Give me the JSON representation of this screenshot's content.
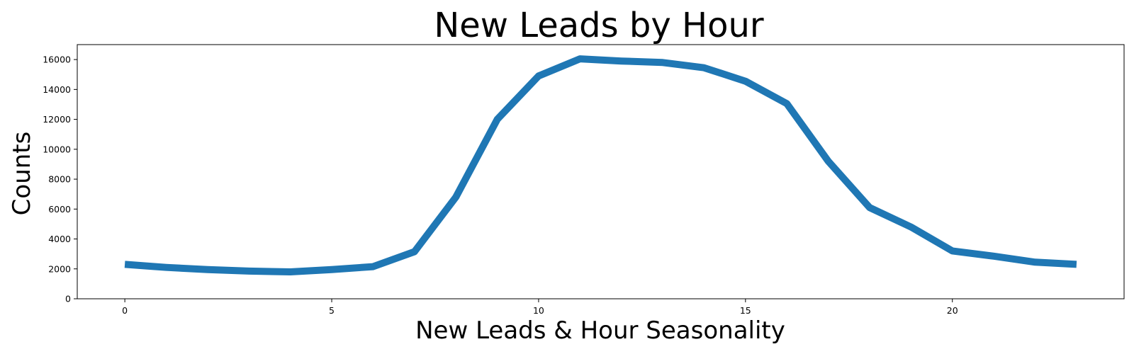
{
  "chart_data": {
    "type": "line",
    "title": "New Leads by Hour",
    "xlabel": "New Leads & Hour Seasonality",
    "ylabel": "Counts",
    "xlim": [
      -1.15,
      24.15
    ],
    "ylim": [
      0,
      17000
    ],
    "x_ticks": [
      0,
      5,
      10,
      15,
      20
    ],
    "y_ticks": [
      0,
      2000,
      4000,
      6000,
      8000,
      10000,
      12000,
      14000,
      16000
    ],
    "grid": false,
    "series": [
      {
        "color": "#1f77b4",
        "x": [
          0,
          1,
          2,
          3,
          4,
          5,
          6,
          7,
          8,
          9,
          10,
          11,
          12,
          13,
          14,
          15,
          16,
          17,
          18,
          19,
          20,
          21,
          22,
          23
        ],
        "y": [
          2300,
          2100,
          1950,
          1850,
          1800,
          1950,
          2150,
          3150,
          6800,
          12000,
          14900,
          16050,
          15900,
          15800,
          15450,
          14550,
          13050,
          9200,
          6100,
          4800,
          3200,
          2850,
          2450,
          2300
        ]
      }
    ]
  }
}
